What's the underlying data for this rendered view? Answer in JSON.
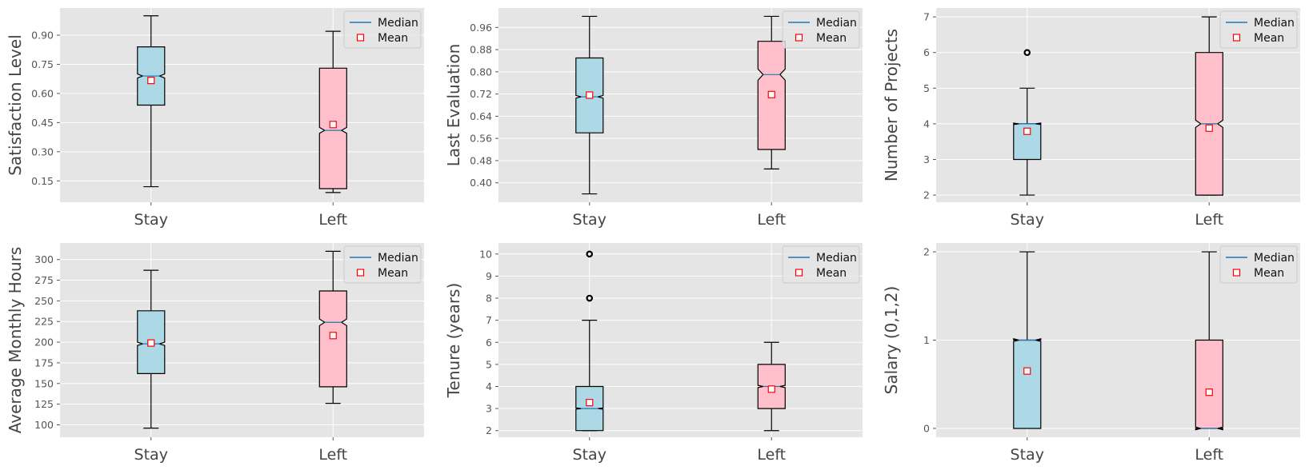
{
  "legend": {
    "median_label": "Median",
    "mean_label": "Mean"
  },
  "colors": {
    "stay": "#add8e6",
    "left": "#ffc0cb",
    "median_line": "#1f77b4",
    "mean_edge": "#ff0000",
    "plot_bg": "#e5e5e5"
  },
  "chart_data": [
    {
      "type": "box",
      "ylabel": "Satisfaction Level",
      "categories": [
        "Stay",
        "Left"
      ],
      "ylim": [
        0.04,
        1.04
      ],
      "yticks": [
        0.15,
        0.3,
        0.45,
        0.6,
        0.75,
        0.9
      ],
      "tick_decimals": 2,
      "notch": true,
      "boxes": [
        {
          "whislo": 0.12,
          "q1": 0.54,
          "med": 0.69,
          "q3": 0.84,
          "whishi": 1.0,
          "mean": 0.667,
          "ci": [
            0.68,
            0.7
          ],
          "fliers": []
        },
        {
          "whislo": 0.09,
          "q1": 0.11,
          "med": 0.41,
          "q3": 0.73,
          "whishi": 0.92,
          "mean": 0.44,
          "ci": [
            0.395,
            0.425
          ],
          "fliers": []
        }
      ]
    },
    {
      "type": "box",
      "ylabel": "Last Evaluation",
      "categories": [
        "Stay",
        "Left"
      ],
      "ylim": [
        0.33,
        1.03
      ],
      "yticks": [
        0.4,
        0.48,
        0.56,
        0.64,
        0.72,
        0.8,
        0.88,
        0.96
      ],
      "tick_decimals": 2,
      "notch": true,
      "boxes": [
        {
          "whislo": 0.36,
          "q1": 0.58,
          "med": 0.71,
          "q3": 0.85,
          "whishi": 1.0,
          "mean": 0.716,
          "ci": [
            0.705,
            0.715
          ],
          "fliers": []
        },
        {
          "whislo": 0.45,
          "q1": 0.52,
          "med": 0.79,
          "q3": 0.91,
          "whishi": 1.0,
          "mean": 0.718,
          "ci": [
            0.77,
            0.81
          ],
          "fliers": []
        }
      ]
    },
    {
      "type": "box",
      "ylabel": "Number of Projects",
      "categories": [
        "Stay",
        "Left"
      ],
      "ylim": [
        1.8,
        7.25
      ],
      "yticks": [
        2,
        3,
        4,
        5,
        6,
        7
      ],
      "tick_decimals": 0,
      "notch": true,
      "boxes": [
        {
          "whislo": 2,
          "q1": 3,
          "med": 4,
          "q3": 4,
          "whishi": 5,
          "mean": 3.79,
          "ci": [
            3.98,
            4.02
          ],
          "fliers": [
            6
          ]
        },
        {
          "whislo": 2,
          "q1": 2,
          "med": 4,
          "q3": 6,
          "whishi": 7,
          "mean": 3.88,
          "ci": [
            3.9,
            4.1
          ],
          "fliers": []
        }
      ]
    },
    {
      "type": "box",
      "ylabel": "Average Monthly Hours",
      "categories": [
        "Stay",
        "Left"
      ],
      "ylim": [
        85,
        320
      ],
      "yticks": [
        100,
        125,
        150,
        175,
        200,
        225,
        250,
        275,
        300
      ],
      "tick_decimals": 0,
      "notch": true,
      "boxes": [
        {
          "whislo": 96,
          "q1": 162,
          "med": 198,
          "q3": 238,
          "whishi": 287,
          "mean": 199,
          "ci": [
            196,
            200
          ],
          "fliers": []
        },
        {
          "whislo": 126,
          "q1": 146,
          "med": 224,
          "q3": 262,
          "whishi": 310,
          "mean": 208,
          "ci": [
            220,
            228
          ],
          "fliers": []
        }
      ]
    },
    {
      "type": "box",
      "ylabel": "Tenure (years)",
      "categories": [
        "Stay",
        "Left"
      ],
      "ylim": [
        1.7,
        10.5
      ],
      "yticks": [
        2,
        3,
        4,
        5,
        6,
        7,
        8,
        9,
        10
      ],
      "tick_decimals": 0,
      "notch": true,
      "boxes": [
        {
          "whislo": 2,
          "q1": 2,
          "med": 3,
          "q3": 4,
          "whishi": 7,
          "mean": 3.27,
          "ci": [
            2.97,
            3.03
          ],
          "fliers": [
            8,
            10
          ]
        },
        {
          "whislo": 2,
          "q1": 3,
          "med": 4,
          "q3": 5,
          "whishi": 6,
          "mean": 3.88,
          "ci": [
            3.95,
            4.05
          ],
          "fliers": []
        }
      ]
    },
    {
      "type": "box",
      "ylabel": "Salary (0,1,2)",
      "categories": [
        "Stay",
        "Left"
      ],
      "ylim": [
        -0.1,
        2.1
      ],
      "yticks": [
        0,
        1,
        2
      ],
      "tick_decimals": 0,
      "notch": true,
      "boxes": [
        {
          "whislo": 0,
          "q1": 0,
          "med": 1,
          "q3": 1,
          "whishi": 2,
          "mean": 0.65,
          "ci": [
            0.985,
            1.015
          ],
          "fliers": []
        },
        {
          "whislo": 0,
          "q1": 0,
          "med": 0,
          "q3": 1,
          "whishi": 2,
          "mean": 0.41,
          "ci": [
            -0.015,
            0.015
          ],
          "fliers": []
        }
      ]
    }
  ]
}
